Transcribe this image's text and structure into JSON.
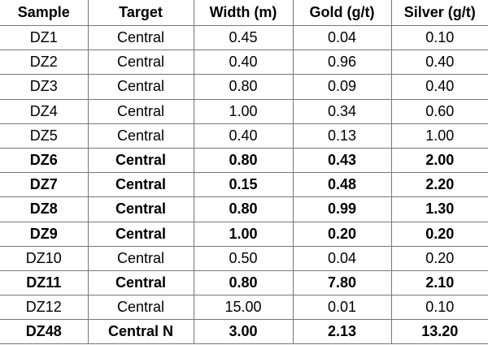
{
  "table": {
    "headers": [
      "Sample",
      "Target",
      "Width (m)",
      "Gold (g/t)",
      "Silver (g/t)"
    ],
    "rows": [
      {
        "cells": [
          "DZ1",
          "Central",
          "0.45",
          "0.04",
          "0.10"
        ],
        "bold": false
      },
      {
        "cells": [
          "DZ2",
          "Central",
          "0.40",
          "0.96",
          "0.40"
        ],
        "bold": false
      },
      {
        "cells": [
          "DZ3",
          "Central",
          "0.80",
          "0.09",
          "0.40"
        ],
        "bold": false
      },
      {
        "cells": [
          "DZ4",
          "Central",
          "1.00",
          "0.34",
          "0.60"
        ],
        "bold": false
      },
      {
        "cells": [
          "DZ5",
          "Central",
          "0.40",
          "0.13",
          "1.00"
        ],
        "bold": false
      },
      {
        "cells": [
          "DZ6",
          "Central",
          "0.80",
          "0.43",
          "2.00"
        ],
        "bold": true
      },
      {
        "cells": [
          "DZ7",
          "Central",
          "0.15",
          "0.48",
          "2.20"
        ],
        "bold": true
      },
      {
        "cells": [
          "DZ8",
          "Central",
          "0.80",
          "0.99",
          "1.30"
        ],
        "bold": true
      },
      {
        "cells": [
          "DZ9",
          "Central",
          "1.00",
          "0.20",
          "0.20"
        ],
        "bold": true
      },
      {
        "cells": [
          "DZ10",
          "Central",
          "0.50",
          "0.04",
          "0.20"
        ],
        "bold": false
      },
      {
        "cells": [
          "DZ11",
          "Central",
          "0.80",
          "7.80",
          "2.10"
        ],
        "bold": true
      },
      {
        "cells": [
          "DZ12",
          "Central",
          "15.00",
          "0.01",
          "0.10"
        ],
        "bold": false
      },
      {
        "cells": [
          "DZ48",
          "Central N",
          "3.00",
          "2.13",
          "13.20"
        ],
        "bold": true
      }
    ]
  }
}
